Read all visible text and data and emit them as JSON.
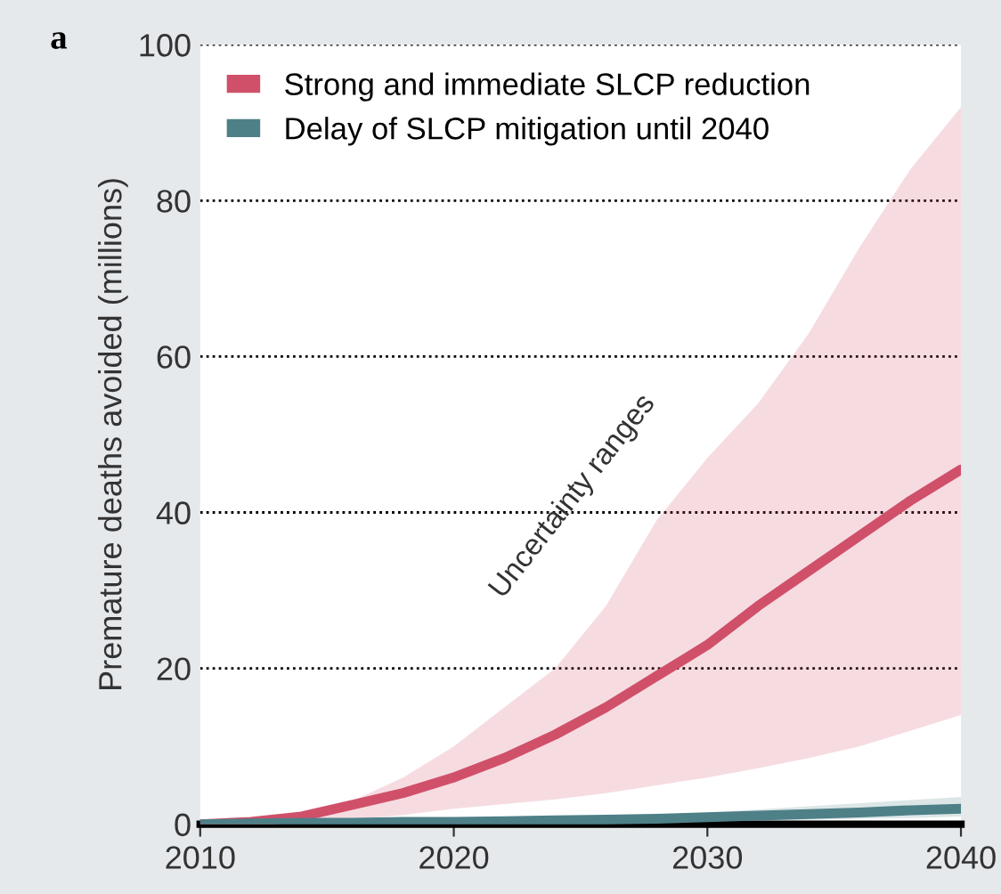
{
  "chart_data": {
    "type": "line",
    "ylabel": "Premature deaths avoided (millions)",
    "x": [
      2010,
      2012,
      2014,
      2016,
      2018,
      2020,
      2022,
      2024,
      2026,
      2028,
      2030,
      2032,
      2034,
      2036,
      2038,
      2040
    ],
    "series": [
      {
        "name": "Strong and immediate SLCP reduction",
        "color": "#d0506a",
        "values": [
          0,
          0.3,
          1,
          2.5,
          4,
          6,
          8.5,
          11.5,
          15,
          19,
          23,
          28,
          32.5,
          37,
          41.5,
          45.5
        ],
        "lower": [
          0,
          0.1,
          0.3,
          0.6,
          1.2,
          2,
          2.6,
          3.2,
          4,
          5,
          6,
          7.2,
          8.5,
          10,
          12,
          14
        ],
        "upper": [
          0,
          0.3,
          1.5,
          3,
          6,
          10,
          15,
          20,
          28,
          39,
          47,
          54,
          63,
          74,
          84,
          92
        ]
      },
      {
        "name": "Delay of SLCP mitigation until 2040",
        "color": "#4e8088",
        "values": [
          0,
          0.1,
          0.2,
          0.2,
          0.3,
          0.3,
          0.4,
          0.5,
          0.6,
          0.7,
          0.9,
          1.1,
          1.3,
          1.5,
          1.8,
          2
        ],
        "lower": [
          0,
          0,
          0,
          0,
          0,
          0,
          0.1,
          0.1,
          0.2,
          0.3,
          0.4,
          0.5,
          0.6,
          0.7,
          0.8,
          1
        ],
        "upper": [
          0,
          0.2,
          0.3,
          0.4,
          0.5,
          0.5,
          0.7,
          0.9,
          1.1,
          1.3,
          1.5,
          1.9,
          2.3,
          2.7,
          3.1,
          3.5
        ]
      }
    ],
    "xlim": [
      2010,
      2040
    ],
    "xticks": [
      2010,
      2020,
      2030,
      2040
    ],
    "ylim": [
      0,
      100
    ],
    "yticks": [
      0,
      20,
      40,
      60,
      80,
      100
    ],
    "grid": "y",
    "legend": "top left",
    "line_style": "solid",
    "marker": "none",
    "annotations": [
      "a",
      "Uncertainty ranges"
    ]
  }
}
